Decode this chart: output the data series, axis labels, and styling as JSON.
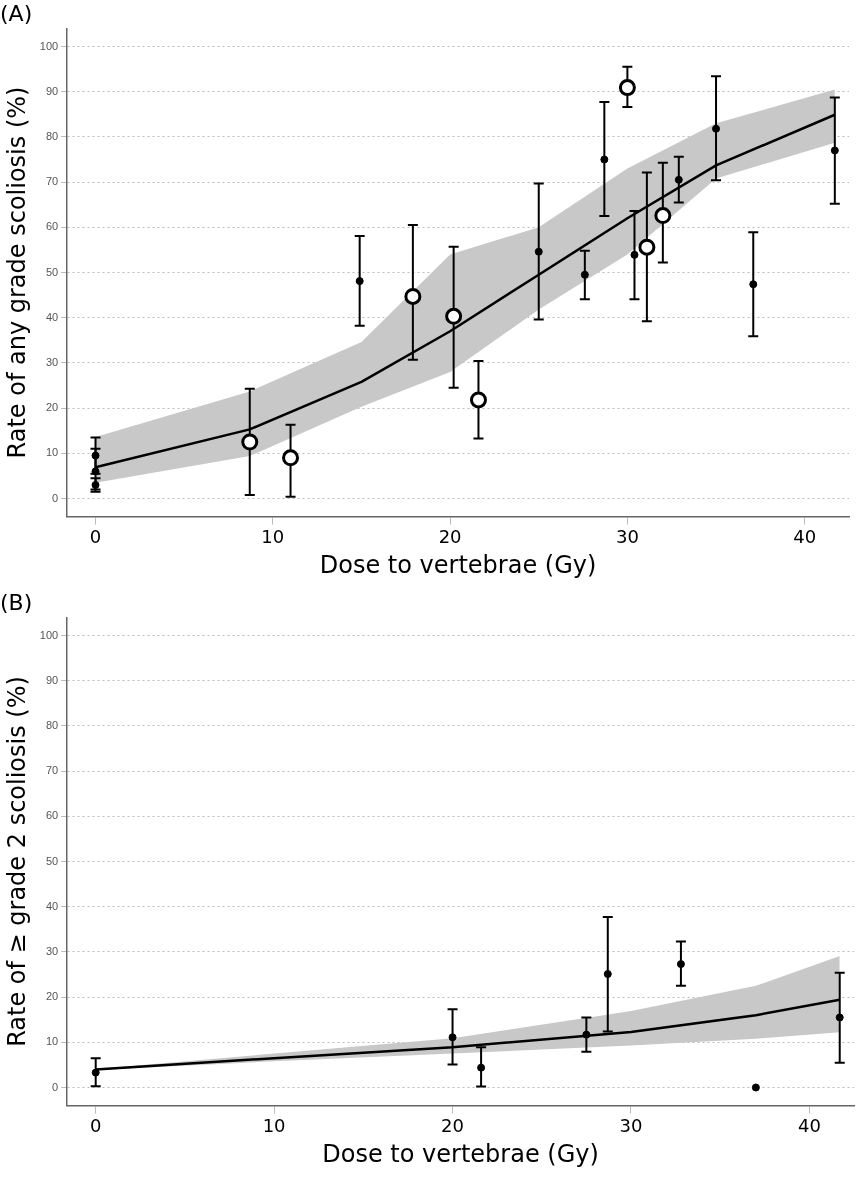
{
  "chart_data": [
    {
      "type": "scatter",
      "title": "(A)",
      "xlabel": "Dose to vertebrae (Gy)",
      "ylabel": "Rate of any grade scoliosis (%)",
      "xlim": [
        -1.6,
        42.5
      ],
      "ylim": [
        -4,
        104
      ],
      "xticks": [
        0,
        10,
        20,
        30,
        40
      ],
      "yticks": [
        0,
        10,
        20,
        30,
        40,
        50,
        60,
        70,
        80,
        90,
        100
      ],
      "grid": "y",
      "legend": false,
      "marker": "circle",
      "series": [
        {
          "type": "line",
          "marker": "none",
          "color": "#000000",
          "x": [
            0,
            8.7,
            15,
            20,
            25,
            30,
            35,
            41.7
          ],
          "values": [
            6.9,
            15.3,
            25.8,
            37,
            49.5,
            62,
            73.7,
            84.9
          ],
          "lower": [
            3.5,
            9.4,
            20.3,
            28,
            41.8,
            54,
            70.8,
            78.7
          ],
          "upper": [
            13.6,
            23.7,
            34.6,
            54,
            60,
            73,
            83,
            90.5
          ]
        },
        {
          "type": "scatter",
          "color": "#000000",
          "x": [
            0,
            0,
            0,
            14.9,
            25.0,
            27.6,
            28.7,
            30.4,
            32.9,
            35.0,
            37.1,
            41.7
          ],
          "values": [
            9.5,
            6,
            3,
            48.1,
            54.6,
            49.5,
            75.0,
            53.9,
            70.5,
            81.8,
            47.4,
            77.0
          ],
          "errors": [
            [
              5.5,
              13.5
            ],
            [
              2,
              11
            ],
            [
              1.5,
              4.5
            ],
            [
              38.2,
              58.1
            ],
            [
              39.6,
              69.7
            ],
            [
              44.1,
              54.8
            ],
            [
              62.5,
              87.7
            ],
            [
              44.1,
              63.6
            ],
            [
              65.5,
              75.6
            ],
            [
              70.4,
              93.4
            ],
            [
              35.9,
              58.9
            ],
            [
              65.2,
              88.7
            ]
          ]
        },
        {
          "type": "scatter",
          "color": "#000000",
          "x": [
            8.7,
            11.0,
            17.9,
            20.2,
            21.6,
            30.0,
            31.1,
            32.0
          ],
          "values": [
            12.5,
            9.0,
            44.7,
            40.3,
            21.8,
            90.9,
            55.6,
            62.6
          ],
          "errors": [
            [
              0.8,
              24.3
            ],
            [
              0.4,
              16.3
            ],
            [
              30.7,
              60.5
            ],
            [
              24.5,
              55.7
            ],
            [
              13.3,
              30.4
            ],
            [
              86.6,
              95.5
            ],
            [
              39.2,
              72.1
            ],
            [
              52.2,
              74.3
            ]
          ]
        }
      ]
    },
    {
      "type": "scatter",
      "title": "(B)",
      "xlabel": "Dose to vertebrae (Gy)",
      "ylabel": "Rate of ≥ grade 2 scoliosis (%)",
      "xlim": [
        -1.6,
        42.5
      ],
      "ylim": [
        -4,
        104
      ],
      "xticks": [
        0,
        10,
        20,
        30,
        40
      ],
      "yticks": [
        0,
        10,
        20,
        30,
        40,
        50,
        60,
        70,
        80,
        90,
        100
      ],
      "grid": "y",
      "legend": false,
      "marker": "circle",
      "series": [
        {
          "type": "line",
          "marker": "none",
          "color": "#000000",
          "x": [
            0,
            10,
            20,
            30,
            37,
            41.7
          ],
          "values": [
            4.0,
            6.5,
            8.9,
            12.3,
            16,
            19.4
          ],
          "lower": [
            3.9,
            5.8,
            7.5,
            9.3,
            10.8,
            12.2
          ],
          "upper": [
            4.1,
            7.5,
            10.9,
            16.9,
            22.5,
            29.1
          ]
        },
        {
          "type": "scatter",
          "color": "#000000",
          "x": [
            0,
            20.0,
            21.6,
            27.5,
            28.7,
            32.8,
            37.0,
            41.7
          ],
          "values": [
            3.3,
            11.1,
            4.4,
            11.7,
            25.1,
            27.3,
            0,
            15.5
          ],
          "errors": [
            [
              0.3,
              6.5
            ],
            [
              5.1,
              17.3
            ],
            [
              0.2,
              8.9
            ],
            [
              7.9,
              15.5
            ],
            [
              12.4,
              37.7
            ],
            [
              22.5,
              32.3
            ],
            null,
            [
              5.5,
              25.4
            ]
          ]
        }
      ]
    }
  ]
}
